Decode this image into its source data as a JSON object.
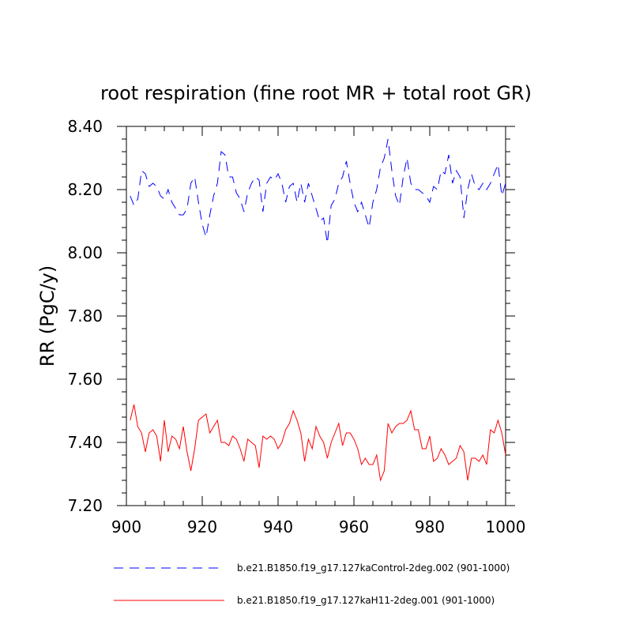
{
  "chart_data": {
    "type": "line",
    "title": "root respiration (fine root MR + total root GR)",
    "xlabel": "",
    "ylabel": "RR  (PgC/y)",
    "xlim": [
      900,
      1000
    ],
    "ylim": [
      7.2,
      8.4
    ],
    "xticks": [
      900,
      920,
      940,
      960,
      980,
      1000
    ],
    "xtick_labels": [
      "900",
      "920",
      "940",
      "960",
      "980",
      "1000"
    ],
    "yticks": [
      7.2,
      7.4,
      7.6,
      7.8,
      8.0,
      8.2,
      8.4
    ],
    "ytick_labels": [
      "7.20",
      "7.40",
      "7.60",
      "7.80",
      "8.00",
      "8.20",
      "8.40"
    ],
    "grid": false,
    "legend_position": "bottom",
    "x": [
      901,
      902,
      903,
      904,
      905,
      906,
      907,
      908,
      909,
      910,
      911,
      912,
      913,
      914,
      915,
      916,
      917,
      918,
      919,
      920,
      921,
      922,
      923,
      924,
      925,
      926,
      927,
      928,
      929,
      930,
      931,
      932,
      933,
      934,
      935,
      936,
      937,
      938,
      939,
      940,
      941,
      942,
      943,
      944,
      945,
      946,
      947,
      948,
      949,
      950,
      951,
      952,
      953,
      954,
      955,
      956,
      957,
      958,
      959,
      960,
      961,
      962,
      963,
      964,
      965,
      966,
      967,
      968,
      969,
      970,
      971,
      972,
      973,
      974,
      975,
      976,
      977,
      978,
      979,
      980,
      981,
      982,
      983,
      984,
      985,
      986,
      987,
      988,
      989,
      990,
      991,
      992,
      993,
      994,
      995,
      996,
      997,
      998,
      999,
      1000
    ],
    "series": [
      {
        "name": "b.e21.B1850.f19_g17.127kaControl-2deg.002 (901-1000)",
        "color": "#0000ff",
        "style": "dashed",
        "values": [
          8.18,
          8.15,
          8.17,
          8.26,
          8.25,
          8.21,
          8.22,
          8.21,
          8.18,
          8.17,
          8.2,
          8.16,
          8.14,
          8.12,
          8.12,
          8.14,
          8.22,
          8.24,
          8.16,
          8.09,
          8.05,
          8.12,
          8.18,
          8.22,
          8.32,
          8.31,
          8.24,
          8.24,
          8.19,
          8.17,
          8.13,
          8.19,
          8.22,
          8.24,
          8.23,
          8.13,
          8.22,
          8.24,
          8.23,
          8.25,
          8.22,
          8.16,
          8.21,
          8.22,
          8.16,
          8.22,
          8.16,
          8.22,
          8.18,
          8.14,
          8.1,
          8.11,
          8.03,
          8.15,
          8.17,
          8.22,
          8.24,
          8.29,
          8.22,
          8.16,
          8.13,
          8.16,
          8.12,
          8.08,
          8.16,
          8.2,
          8.27,
          8.3,
          8.36,
          8.26,
          8.18,
          8.15,
          8.24,
          8.3,
          8.22,
          8.2,
          8.2,
          8.19,
          8.18,
          8.16,
          8.21,
          8.2,
          8.26,
          8.25,
          8.31,
          8.22,
          8.26,
          8.24,
          8.11,
          8.2,
          8.25,
          8.21,
          8.2,
          8.22,
          8.2,
          8.22,
          8.25,
          8.28,
          8.18,
          8.22
        ]
      },
      {
        "name": "b.e21.B1850.f19_g17.127kaH11-2deg.001 (901-1000)",
        "color": "#ff0000",
        "style": "solid",
        "values": [
          7.47,
          7.52,
          7.45,
          7.43,
          7.37,
          7.43,
          7.44,
          7.42,
          7.34,
          7.47,
          7.37,
          7.42,
          7.41,
          7.38,
          7.45,
          7.37,
          7.31,
          7.38,
          7.47,
          7.48,
          7.49,
          7.43,
          7.45,
          7.47,
          7.4,
          7.4,
          7.39,
          7.42,
          7.41,
          7.38,
          7.34,
          7.41,
          7.4,
          7.39,
          7.32,
          7.42,
          7.41,
          7.42,
          7.41,
          7.38,
          7.4,
          7.44,
          7.46,
          7.5,
          7.47,
          7.43,
          7.34,
          7.41,
          7.38,
          7.45,
          7.42,
          7.4,
          7.35,
          7.4,
          7.43,
          7.46,
          7.39,
          7.43,
          7.43,
          7.41,
          7.38,
          7.33,
          7.35,
          7.33,
          7.33,
          7.36,
          7.28,
          7.31,
          7.46,
          7.43,
          7.45,
          7.46,
          7.46,
          7.47,
          7.5,
          7.44,
          7.44,
          7.38,
          7.38,
          7.42,
          7.34,
          7.35,
          7.38,
          7.36,
          7.33,
          7.34,
          7.35,
          7.39,
          7.37,
          7.28,
          7.35,
          7.35,
          7.34,
          7.36,
          7.33,
          7.44,
          7.43,
          7.47,
          7.43,
          7.36
        ]
      }
    ]
  }
}
